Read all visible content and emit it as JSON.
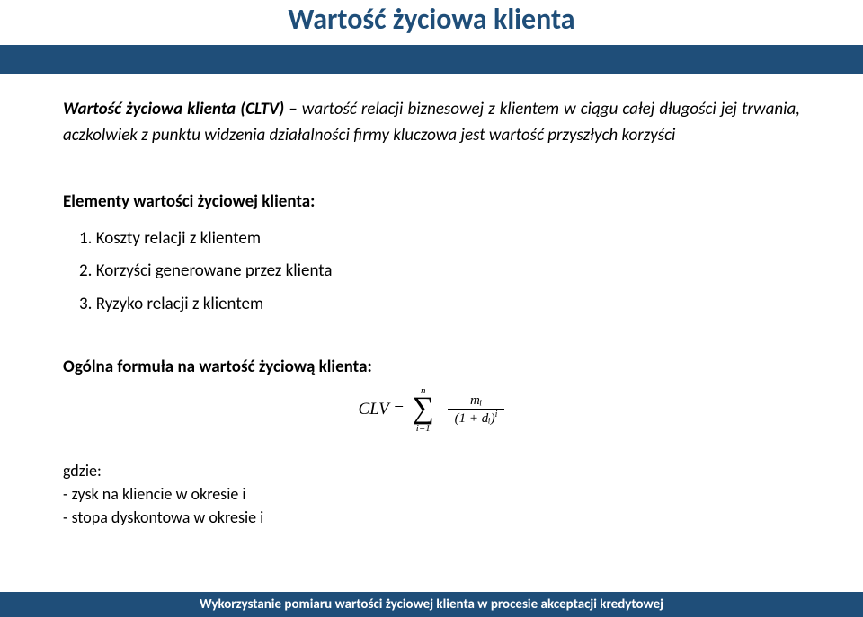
{
  "title": "Wartość życiowa klienta",
  "intro": {
    "bold_lead": "Wartość życiowa klienta (CLTV)",
    "rest": " – wartość relacji biznesowej z klientem w ciągu całej długości jej trwania, aczkolwiek z punktu widzenia działalności firmy kluczowa jest wartość przyszłych korzyści"
  },
  "elements_heading": "Elementy wartości życiowej klienta:",
  "elements": [
    "1. Koszty relacji z klientem",
    "2. Korzyści generowane przez klienta",
    "3. Ryzyko relacji z klientem"
  ],
  "formula_heading": "Ogólna formuła na wartość życiową klienta:",
  "formula": {
    "lhs": "CLV =",
    "sum_top": "n",
    "sum_bottom": "i=1",
    "numerator": "mᵢ",
    "denominator_base": "(1 + dᵢ)",
    "denominator_exp": "i"
  },
  "where_label": "gdzie:",
  "where_lines": [
    "- zysk na kliencie w okresie i",
    "- stopa dyskontowa w okresie i"
  ],
  "footer": "Wykorzystanie pomiaru wartości życiowej klienta w procesie akceptacji kredytowej",
  "colors": {
    "brand": "#1f4e79",
    "background": "#ffffff",
    "text": "#000000",
    "footer_text": "#ffffff"
  }
}
